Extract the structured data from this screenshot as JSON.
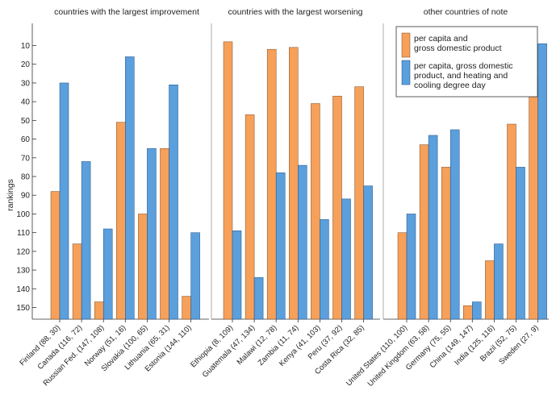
{
  "colors": {
    "gdp": "#f6a05a",
    "hdd": "#5b9fdc"
  },
  "chart_data": {
    "type": "bar",
    "ylabel": "rankings",
    "yticks": [
      10,
      20,
      30,
      40,
      50,
      60,
      70,
      80,
      90,
      100,
      110,
      120,
      130,
      140,
      150
    ],
    "yaxis_inverted": true,
    "ylim": [
      0,
      156
    ],
    "legend": {
      "placement": "top-right",
      "entries": [
        {
          "key": "gdp",
          "text": [
            "per capita and",
            "gross domestic product"
          ]
        },
        {
          "key": "hdd",
          "text": [
            "per capita, gross domestic",
            "product, and heating and",
            "cooling degree day"
          ]
        }
      ]
    },
    "panels": [
      {
        "title": "countries with the largest improvement",
        "categories": [
          "Finland (88, 30)",
          "Canada (116, 72)",
          "Russian Fed. (147, 108)",
          "Norway (51, 16)",
          "Slovakia (100, 65)",
          "Lithuania (65, 31)",
          "Estonia (144, 110)"
        ],
        "series": [
          {
            "key": "gdp",
            "values": [
              88,
              116,
              147,
              51,
              100,
              65,
              144
            ]
          },
          {
            "key": "hdd",
            "values": [
              30,
              72,
              108,
              16,
              65,
              31,
              110
            ]
          }
        ]
      },
      {
        "title": "countries with the largest worsening",
        "categories": [
          "Ethiopia (8, 109)",
          "Guatemala (47, 134)",
          "Malawi (12, 78)",
          "Zambia (11, 74)",
          "Kenya (41, 103)",
          "Peru (37, 92)",
          "Costa Rica (32, 85)"
        ],
        "series": [
          {
            "key": "gdp",
            "values": [
              8,
              47,
              12,
              11,
              41,
              37,
              32
            ]
          },
          {
            "key": "hdd",
            "values": [
              109,
              134,
              78,
              74,
              103,
              92,
              85
            ]
          }
        ]
      },
      {
        "title": "other countries of note",
        "categories": [
          "United States (110, 100)",
          "United Kingdom (63, 58)",
          "Germany (75, 55)",
          "China (149, 147)",
          "India (125, 116)",
          "Brazil (52, 75)",
          "Sweden (27, 9)"
        ],
        "series": [
          {
            "key": "gdp",
            "values": [
              110,
              63,
              75,
              149,
              125,
              52,
              27
            ]
          },
          {
            "key": "hdd",
            "values": [
              100,
              58,
              55,
              147,
              116,
              75,
              9
            ]
          }
        ]
      }
    ]
  }
}
